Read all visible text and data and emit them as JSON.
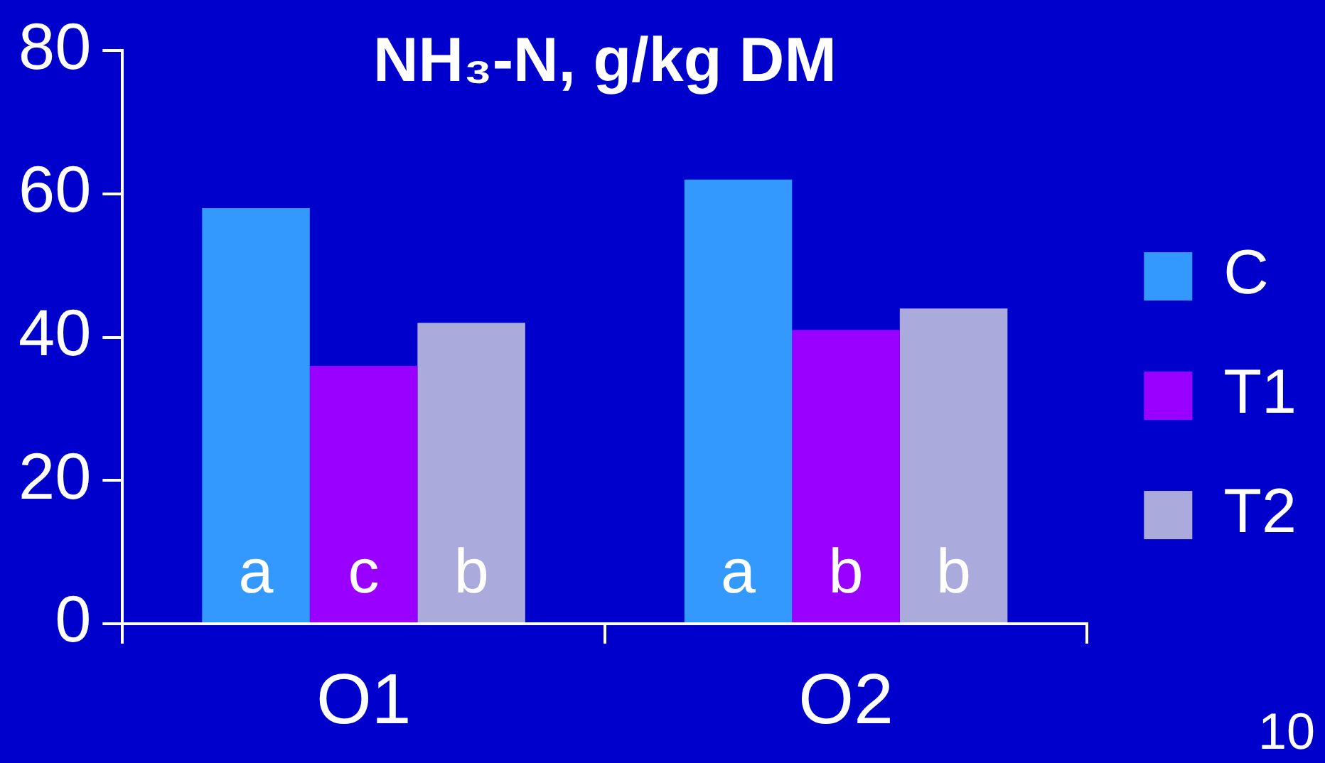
{
  "chart_data": {
    "type": "bar",
    "title": "NH₃-N, g/kg DM",
    "categories": [
      "O1",
      "O2"
    ],
    "series": [
      {
        "name": "C",
        "color": "#3399ff",
        "values": [
          58,
          62
        ],
        "value_labels": [
          "a",
          "a"
        ]
      },
      {
        "name": "T1",
        "color": "#9900ff",
        "values": [
          36,
          41
        ],
        "value_labels": [
          "c",
          "b"
        ]
      },
      {
        "name": "T2",
        "color": "#aaaadd",
        "values": [
          42,
          44
        ],
        "value_labels": [
          "b",
          "b"
        ]
      }
    ],
    "ylim": [
      0,
      80
    ],
    "yticks": [
      0,
      20,
      40,
      60,
      80
    ],
    "grid": false,
    "legend": "right",
    "annotations": [
      "10"
    ]
  }
}
